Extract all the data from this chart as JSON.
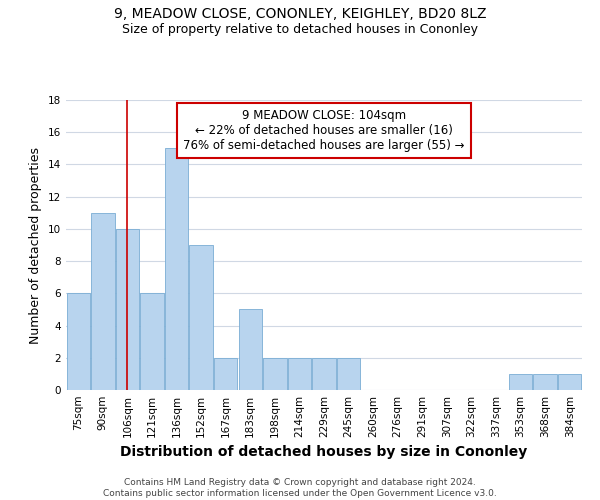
{
  "title_line1": "9, MEADOW CLOSE, CONONLEY, KEIGHLEY, BD20 8LZ",
  "title_line2": "Size of property relative to detached houses in Cononley",
  "xlabel": "Distribution of detached houses by size in Cononley",
  "ylabel": "Number of detached properties",
  "footnote": "Contains HM Land Registry data © Crown copyright and database right 2024.\nContains public sector information licensed under the Open Government Licence v3.0.",
  "bin_labels": [
    "75sqm",
    "90sqm",
    "106sqm",
    "121sqm",
    "136sqm",
    "152sqm",
    "167sqm",
    "183sqm",
    "198sqm",
    "214sqm",
    "229sqm",
    "245sqm",
    "260sqm",
    "276sqm",
    "291sqm",
    "307sqm",
    "322sqm",
    "337sqm",
    "353sqm",
    "368sqm",
    "384sqm"
  ],
  "bar_values": [
    6,
    11,
    10,
    6,
    15,
    9,
    2,
    5,
    2,
    2,
    2,
    2,
    0,
    0,
    0,
    0,
    0,
    0,
    1,
    1,
    1
  ],
  "bar_color": "#b8d4ee",
  "bar_edge_color": "#7aadd4",
  "annotation_box_text": "9 MEADOW CLOSE: 104sqm\n← 22% of detached houses are smaller (16)\n76% of semi-detached houses are larger (55) →",
  "annotation_box_color": "#ffffff",
  "annotation_box_edge_color": "#cc0000",
  "vline_x_index": 2,
  "vline_color": "#cc0000",
  "ylim": [
    0,
    18
  ],
  "yticks": [
    0,
    2,
    4,
    6,
    8,
    10,
    12,
    14,
    16,
    18
  ],
  "grid_color": "#d0d8e4",
  "background_color": "#ffffff",
  "title_fontsize": 10,
  "subtitle_fontsize": 9,
  "axis_label_fontsize": 9,
  "tick_fontsize": 7.5,
  "annotation_fontsize": 8.5,
  "footnote_fontsize": 6.5
}
